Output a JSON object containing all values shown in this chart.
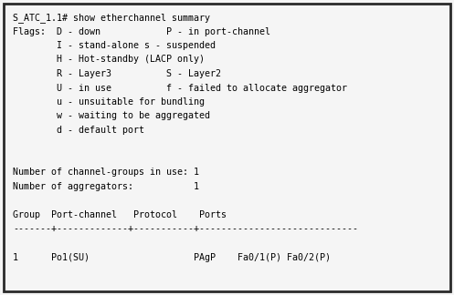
{
  "bg_color": "#f5f5f5",
  "border_color": "#2a2a2a",
  "text_color": "#000000",
  "font_size": 7.2,
  "lines": [
    "S_ATC_1.1# show etherchannel summary",
    "Flags:  D - down            P - in port-channel",
    "        I - stand-alone s - suspended",
    "        H - Hot-standby (LACP only)",
    "        R - Layer3          S - Layer2",
    "        U - in use          f - failed to allocate aggregator",
    "        u - unsuitable for bundling",
    "        w - waiting to be aggregated",
    "        d - default port",
    "",
    "",
    "Number of channel-groups in use: 1",
    "Number of aggregators:           1",
    "",
    "Group  Port-channel   Protocol    Ports",
    "-------+-------------+-----------+-----------------------------",
    "",
    "1      Po1(SU)                   PAgP    Fa0/1(P) Fa0/2(P)"
  ],
  "figsize": [
    4.97,
    3.24
  ],
  "dpi": 100
}
